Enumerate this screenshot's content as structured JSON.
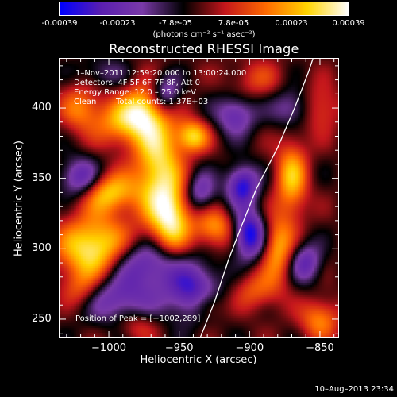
{
  "colorbar": {
    "ticks": [
      "-0.00039",
      "-0.00023",
      "-7.8e-05",
      "7.8e-05",
      "0.00023",
      "0.00039"
    ],
    "unit": "(photons cm⁻² s⁻¹ asec⁻²)",
    "colors": [
      "#0000ff",
      "#5a1fb0",
      "#7a3aa8",
      "#000000",
      "#c4161c",
      "#ff6a00",
      "#ffd400",
      "#ffffff"
    ]
  },
  "chart_data": {
    "type": "heatmap",
    "title": "Reconstructed RHESSI Image",
    "xlabel": "Heliocentric X (arcsec)",
    "ylabel": "Heliocentric Y (arcsec)",
    "xlim": [
      -1035,
      -837
    ],
    "ylim": [
      237,
      435
    ],
    "xticks": [
      -1000,
      -950,
      -900,
      -850
    ],
    "xtick_labels": [
      "−1000",
      "−950",
      "−900",
      "−850"
    ],
    "yticks": [
      250,
      300,
      350,
      400
    ],
    "ytick_labels": [
      "250",
      "300",
      "350",
      "400"
    ],
    "value_range": [
      -0.00039,
      0.00039
    ],
    "limb_curve": [
      [
        -935,
        237
      ],
      [
        -925,
        262
      ],
      [
        -915,
        292
      ],
      [
        -905,
        318
      ],
      [
        -895,
        343
      ],
      [
        -880,
        372
      ],
      [
        -868,
        400
      ],
      [
        -858,
        426
      ],
      [
        -855,
        435
      ]
    ],
    "blobs": [
      {
        "x": -1010,
        "y": 300,
        "sx": 18,
        "sy": 16,
        "amp": 1.0
      },
      {
        "x": -1000,
        "y": 340,
        "sx": 14,
        "sy": 10,
        "amp": 0.75
      },
      {
        "x": -1020,
        "y": 270,
        "sx": 10,
        "sy": 10,
        "amp": 0.45
      },
      {
        "x": -1020,
        "y": 350,
        "sx": 10,
        "sy": 10,
        "amp": -0.7
      },
      {
        "x": -995,
        "y": 265,
        "sx": 20,
        "sy": 12,
        "amp": -0.6
      },
      {
        "x": -990,
        "y": 390,
        "sx": 14,
        "sy": 12,
        "amp": 0.65
      },
      {
        "x": -975,
        "y": 400,
        "sx": 10,
        "sy": 12,
        "amp": 0.55
      },
      {
        "x": -965,
        "y": 360,
        "sx": 12,
        "sy": 30,
        "amp": 0.85
      },
      {
        "x": -955,
        "y": 320,
        "sx": 10,
        "sy": 18,
        "amp": 0.8
      },
      {
        "x": -960,
        "y": 410,
        "sx": 8,
        "sy": 10,
        "amp": -0.65
      },
      {
        "x": -940,
        "y": 380,
        "sx": 8,
        "sy": 8,
        "amp": 0.75
      },
      {
        "x": -975,
        "y": 290,
        "sx": 18,
        "sy": 12,
        "amp": -0.7
      },
      {
        "x": -940,
        "y": 270,
        "sx": 14,
        "sy": 14,
        "amp": -0.75
      },
      {
        "x": -935,
        "y": 340,
        "sx": 8,
        "sy": 10,
        "amp": -0.55
      },
      {
        "x": -925,
        "y": 315,
        "sx": 10,
        "sy": 10,
        "amp": 0.6
      },
      {
        "x": -930,
        "y": 260,
        "sx": 8,
        "sy": 8,
        "amp": 0.45
      },
      {
        "x": -900,
        "y": 310,
        "sx": 8,
        "sy": 12,
        "amp": -0.95
      },
      {
        "x": -905,
        "y": 345,
        "sx": 8,
        "sy": 10,
        "amp": -0.85
      },
      {
        "x": -910,
        "y": 395,
        "sx": 10,
        "sy": 10,
        "amp": -0.6
      },
      {
        "x": -880,
        "y": 300,
        "sx": 8,
        "sy": 16,
        "amp": 0.65
      },
      {
        "x": -870,
        "y": 350,
        "sx": 8,
        "sy": 20,
        "amp": 0.7
      },
      {
        "x": -860,
        "y": 290,
        "sx": 8,
        "sy": 10,
        "amp": -0.6
      },
      {
        "x": -895,
        "y": 270,
        "sx": 12,
        "sy": 10,
        "amp": 0.4
      },
      {
        "x": -895,
        "y": 420,
        "sx": 14,
        "sy": 10,
        "amp": 0.3
      },
      {
        "x": -870,
        "y": 400,
        "sx": 10,
        "sy": 10,
        "amp": -0.5
      },
      {
        "x": -850,
        "y": 400,
        "sx": 10,
        "sy": 12,
        "amp": 0.4
      },
      {
        "x": -850,
        "y": 250,
        "sx": 10,
        "sy": 10,
        "amp": 0.55
      },
      {
        "x": -1020,
        "y": 400,
        "sx": 10,
        "sy": 12,
        "amp": 0.5
      },
      {
        "x": -1005,
        "y": 425,
        "sx": 12,
        "sy": 8,
        "amp": -0.3
      },
      {
        "x": -980,
        "y": 245,
        "sx": 10,
        "sy": 8,
        "amp": 0.3
      }
    ]
  },
  "annotations": {
    "time": "1–Nov–2011 12:59:20.000 to 13:00:24.000",
    "detectors": "Detectors: 4F 5F 6F 7F 8F, Att 0",
    "energy": "Energy Range: 12.0 – 25.0 keV",
    "clean": "Clean",
    "counts": "Total counts: 1.37E+03",
    "peak": "Position of Peak = [−1002,289]"
  },
  "footer": "10–Aug–2013 23:34"
}
